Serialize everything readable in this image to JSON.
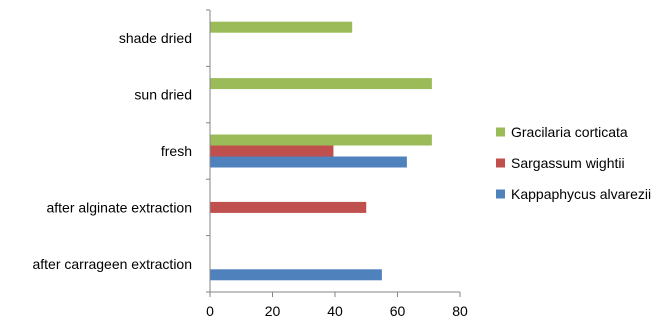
{
  "chart_data": {
    "type": "bar",
    "orientation": "horizontal",
    "title": "",
    "xlabel": "",
    "ylabel": "",
    "categories": [
      "after carrageen extraction",
      "after alginate extraction",
      "fresh",
      "sun dried",
      "shade dried"
    ],
    "series": [
      {
        "name": "Kappaphycus alvarezii",
        "color": "#4F81BD",
        "values": [
          55,
          null,
          63,
          null,
          null
        ]
      },
      {
        "name": "Sargassum wightii",
        "color": "#C0504D",
        "values": [
          null,
          50,
          39.5,
          null,
          null
        ]
      },
      {
        "name": "Gracilaria corticata",
        "color": "#9BBB59",
        "values": [
          null,
          null,
          71,
          71,
          45.5
        ]
      }
    ],
    "xlim": [
      0,
      80
    ],
    "xticks": [
      0,
      20,
      40,
      60,
      80
    ],
    "grid": false,
    "legend_position": "right"
  }
}
